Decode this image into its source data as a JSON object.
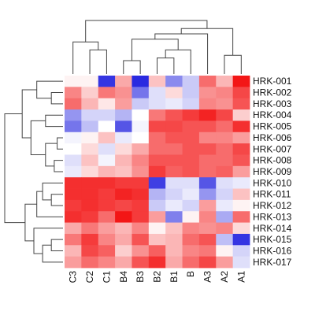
{
  "chart_data": {
    "type": "heatmap",
    "title": "",
    "columns": [
      "C3",
      "C2",
      "C1",
      "B4",
      "B3",
      "B2",
      "B1",
      "B",
      "A3",
      "A2",
      "A1"
    ],
    "rows": [
      "HRK-001",
      "HRK-002",
      "HRK-003",
      "HRK-004",
      "HRK-005",
      "HRK-006",
      "HRK-007",
      "HRK-008",
      "HRK-009",
      "HRK-010",
      "HRK-011",
      "HRK-012",
      "HRK-013",
      "HRK-014",
      "HRK-015",
      "HRK-016",
      "HRK-017"
    ],
    "values": [
      [
        0.05,
        0.05,
        -0.95,
        0.35,
        -1.0,
        0.25,
        -0.55,
        -0.25,
        0.6,
        0.3,
        0.95
      ],
      [
        0.5,
        0.2,
        0.55,
        0.45,
        -0.65,
        -0.15,
        0.15,
        -0.25,
        0.45,
        0.5,
        0.75
      ],
      [
        0.6,
        0.3,
        0.1,
        0.4,
        -0.25,
        -0.15,
        -0.1,
        -0.2,
        0.5,
        0.45,
        0.7
      ],
      [
        -0.5,
        -0.2,
        -0.2,
        -0.35,
        0.0,
        0.55,
        0.7,
        0.8,
        0.9,
        0.75,
        0.2
      ],
      [
        -0.65,
        -0.3,
        0.0,
        -0.8,
        -0.05,
        0.75,
        0.75,
        0.7,
        0.7,
        0.6,
        0.85
      ],
      [
        -0.05,
        0.05,
        0.25,
        -0.1,
        0.0,
        0.6,
        0.7,
        0.7,
        0.5,
        0.5,
        0.4
      ],
      [
        0.0,
        0.15,
        -0.15,
        0.15,
        0.35,
        0.6,
        0.6,
        0.7,
        0.7,
        0.6,
        0.75
      ],
      [
        -0.15,
        0.25,
        -0.05,
        0.3,
        0.5,
        0.7,
        0.7,
        0.7,
        0.6,
        0.6,
        0.7
      ],
      [
        -0.1,
        0.15,
        0.3,
        0.25,
        0.45,
        0.8,
        0.65,
        0.7,
        0.6,
        0.65,
        0.4
      ],
      [
        0.85,
        0.85,
        0.85,
        0.8,
        0.8,
        -0.9,
        -0.15,
        -0.15,
        -0.8,
        -0.15,
        -0.1
      ],
      [
        0.85,
        0.85,
        0.8,
        0.9,
        0.85,
        -0.35,
        -0.2,
        -0.1,
        -0.5,
        -0.2,
        0.25
      ],
      [
        0.8,
        0.85,
        0.8,
        0.75,
        0.8,
        -0.25,
        -0.1,
        -0.2,
        0.4,
        -0.1,
        0.05
      ],
      [
        0.85,
        0.8,
        0.6,
        0.95,
        0.8,
        0.4,
        -0.6,
        0.05,
        0.5,
        -0.4,
        0.6
      ],
      [
        0.35,
        0.55,
        0.4,
        0.3,
        0.5,
        0.05,
        0.25,
        0.5,
        0.45,
        0.5,
        0.15
      ],
      [
        0.55,
        0.8,
        0.5,
        0.35,
        0.7,
        0.25,
        0.3,
        0.6,
        0.7,
        -0.3,
        -0.95
      ],
      [
        0.3,
        0.75,
        0.65,
        0.2,
        0.45,
        0.65,
        0.3,
        0.5,
        0.55,
        0.05,
        -0.2
      ],
      [
        0.4,
        0.6,
        0.5,
        0.35,
        0.7,
        0.85,
        0.35,
        0.6,
        0.75,
        0.4,
        -0.15
      ]
    ],
    "color_scale": {
      "low": "#2a2ae0",
      "mid": "#ffffff",
      "high": "#f20a0a"
    },
    "col_dendrogram": [
      [
        5,
        6,
        0.3
      ],
      [
        7,
        11,
        0.45
      ],
      [
        9,
        10,
        0.35
      ],
      [
        3,
        4,
        0.25
      ],
      [
        1,
        2,
        0.45
      ],
      [
        12,
        14,
        0.65
      ],
      [
        15,
        0,
        0.6
      ],
      [
        16,
        8,
        0.75
      ],
      [
        18,
        13,
        0.85
      ],
      [
        19,
        17,
        1.0
      ]
    ],
    "row_dendrogram": [
      [
        5,
        6,
        0.1
      ],
      [
        7,
        8,
        0.15
      ],
      [
        17,
        18,
        0.3
      ],
      [
        1,
        2,
        0.2
      ],
      [
        3,
        4,
        0.3
      ],
      [
        0,
        20,
        0.45
      ],
      [
        21,
        19,
        0.55
      ],
      [
        10,
        11,
        0.2
      ],
      [
        9,
        24,
        0.35
      ],
      [
        12,
        25,
        0.45
      ],
      [
        14,
        15,
        0.2
      ],
      [
        27,
        16,
        0.35
      ],
      [
        13,
        28,
        0.5
      ],
      [
        26,
        29,
        0.65
      ],
      [
        22,
        23,
        0.7
      ],
      [
        31,
        30,
        1.0
      ]
    ]
  }
}
